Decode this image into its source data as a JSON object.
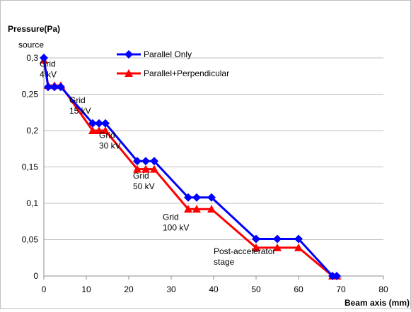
{
  "chart_data": {
    "type": "line",
    "ylabel": "Pressure(Pa)",
    "xlabel": "Beam axis (mm)",
    "xlim": [
      0,
      80
    ],
    "ylim": [
      0,
      0.3
    ],
    "x_ticks": [
      "0",
      "10",
      "20",
      "30",
      "40",
      "50",
      "60",
      "70",
      "80"
    ],
    "y_ticks": [
      "0",
      "0,05",
      "0,1",
      "0,15",
      "0,2",
      "0,25",
      "0,3"
    ],
    "grid": "horizontal",
    "legend_position": "top-center",
    "series": [
      {
        "name": "Parallel Only",
        "color": "#0000ff",
        "marker": "diamond",
        "points": [
          [
            0,
            0.3
          ],
          [
            1,
            0.26
          ],
          [
            2.5,
            0.26
          ],
          [
            4,
            0.26
          ],
          [
            11.5,
            0.21
          ],
          [
            13,
            0.21
          ],
          [
            14.5,
            0.21
          ],
          [
            22,
            0.158
          ],
          [
            24,
            0.158
          ],
          [
            26,
            0.158
          ],
          [
            34,
            0.108
          ],
          [
            36,
            0.108
          ],
          [
            39.5,
            0.108
          ],
          [
            50,
            0.051
          ],
          [
            55,
            0.051
          ],
          [
            60,
            0.051
          ],
          [
            68,
            0
          ],
          [
            69,
            0
          ]
        ]
      },
      {
        "name": "Parallel+Perpendicular",
        "color": "#ff0000",
        "marker": "triangle",
        "points": [
          [
            0,
            0.297
          ],
          [
            1,
            0.262
          ],
          [
            2.5,
            0.262
          ],
          [
            4,
            0.262
          ],
          [
            11.5,
            0.2
          ],
          [
            13,
            0.2
          ],
          [
            14.5,
            0.2
          ],
          [
            22,
            0.147
          ],
          [
            24,
            0.147
          ],
          [
            26,
            0.147
          ],
          [
            34,
            0.092
          ],
          [
            36,
            0.092
          ],
          [
            39.5,
            0.092
          ],
          [
            50,
            0.039
          ],
          [
            55,
            0.039
          ],
          [
            60,
            0.039
          ],
          [
            68,
            0
          ],
          [
            69,
            0
          ]
        ]
      }
    ],
    "annotations": [
      {
        "lines": [
          "source"
        ],
        "x": -6,
        "y": 0.314
      },
      {
        "lines": [
          "Grid",
          "4 kV"
        ],
        "x": -1,
        "y": 0.288
      },
      {
        "lines": [
          "Grid",
          "15 kV"
        ],
        "x": 6,
        "y": 0.238
      },
      {
        "lines": [
          "Grid",
          "30 kV"
        ],
        "x": 13,
        "y": 0.19
      },
      {
        "lines": [
          "Grid",
          "50 kV"
        ],
        "x": 21,
        "y": 0.134
      },
      {
        "lines": [
          "Grid",
          "100 kV"
        ],
        "x": 28,
        "y": 0.077
      },
      {
        "lines": [
          "Post-accelerator",
          "stage"
        ],
        "x": 40,
        "y": 0.03
      }
    ]
  }
}
